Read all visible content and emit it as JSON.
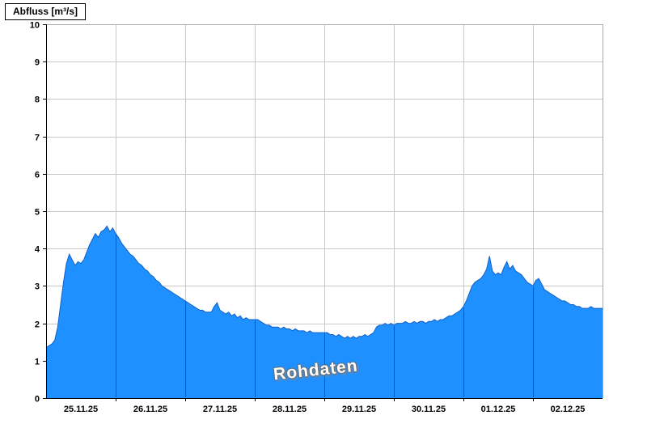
{
  "header": {
    "title": "Abfluss [m³/s]"
  },
  "chart_data": {
    "type": "area",
    "title": "Abfluss [m³/s]",
    "ylabel": "Abfluss [m³/s]",
    "watermark": "Rohdaten",
    "ylim": [
      0,
      10
    ],
    "y_ticks": [
      0,
      1,
      2,
      3,
      4,
      5,
      6,
      7,
      8,
      9,
      10
    ],
    "x_hours_range": [
      0,
      192
    ],
    "x_tick_labels": [
      "25.11.25",
      "26.11.25",
      "27.11.25",
      "28.11.25",
      "29.11.25",
      "30.11.25",
      "01.12.25",
      "02.12.25"
    ],
    "x_tick_hours": [
      12,
      36,
      60,
      84,
      108,
      132,
      156,
      180
    ],
    "day_boundary_hours": [
      24,
      48,
      72,
      96,
      120,
      144,
      168
    ],
    "series": [
      {
        "name": "Abfluss Rohdaten",
        "unit": "m³/s",
        "step_hours": 1,
        "values": [
          1.35,
          1.4,
          1.45,
          1.55,
          1.9,
          2.5,
          3.1,
          3.6,
          3.85,
          3.7,
          3.55,
          3.65,
          3.6,
          3.7,
          3.9,
          4.1,
          4.25,
          4.4,
          4.3,
          4.45,
          4.5,
          4.6,
          4.45,
          4.55,
          4.4,
          4.3,
          4.15,
          4.05,
          3.95,
          3.85,
          3.8,
          3.7,
          3.6,
          3.55,
          3.45,
          3.4,
          3.3,
          3.25,
          3.15,
          3.1,
          3.0,
          2.95,
          2.9,
          2.85,
          2.8,
          2.75,
          2.7,
          2.65,
          2.6,
          2.55,
          2.5,
          2.45,
          2.4,
          2.35,
          2.35,
          2.3,
          2.3,
          2.3,
          2.45,
          2.55,
          2.35,
          2.3,
          2.25,
          2.3,
          2.2,
          2.25,
          2.15,
          2.2,
          2.1,
          2.15,
          2.1,
          2.1,
          2.1,
          2.1,
          2.05,
          2.0,
          1.95,
          1.95,
          1.9,
          1.9,
          1.9,
          1.85,
          1.9,
          1.85,
          1.85,
          1.8,
          1.85,
          1.8,
          1.8,
          1.8,
          1.75,
          1.8,
          1.75,
          1.75,
          1.75,
          1.75,
          1.75,
          1.75,
          1.7,
          1.7,
          1.65,
          1.7,
          1.65,
          1.6,
          1.65,
          1.6,
          1.65,
          1.6,
          1.65,
          1.65,
          1.7,
          1.65,
          1.7,
          1.75,
          1.9,
          1.95,
          1.95,
          2.0,
          1.95,
          2.0,
          1.95,
          2.0,
          2.0,
          2.0,
          2.05,
          2.0,
          2.0,
          2.05,
          2.0,
          2.05,
          2.05,
          2.0,
          2.05,
          2.05,
          2.1,
          2.05,
          2.1,
          2.1,
          2.15,
          2.2,
          2.2,
          2.25,
          2.3,
          2.35,
          2.45,
          2.6,
          2.8,
          3.0,
          3.1,
          3.15,
          3.2,
          3.3,
          3.45,
          3.8,
          3.4,
          3.3,
          3.35,
          3.3,
          3.5,
          3.65,
          3.45,
          3.55,
          3.4,
          3.35,
          3.3,
          3.2,
          3.1,
          3.05,
          3.0,
          3.15,
          3.2,
          3.05,
          2.9,
          2.85,
          2.8,
          2.75,
          2.7,
          2.65,
          2.6,
          2.6,
          2.55,
          2.5,
          2.5,
          2.45,
          2.45,
          2.4,
          2.4,
          2.4,
          2.45,
          2.4,
          2.4,
          2.4,
          2.4
        ]
      }
    ],
    "colors": {
      "fill": "#1e90ff",
      "line": "#1261c9",
      "grid": "#c8c8c8",
      "frame": "#aaaaaa",
      "axis": "#000000",
      "day_line": "#27509b",
      "background": "#ffffff"
    }
  }
}
